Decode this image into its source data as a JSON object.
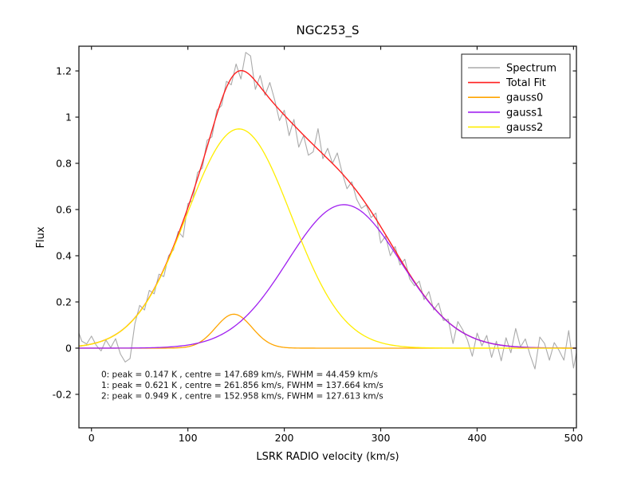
{
  "title": "NGC253_S",
  "xlabel": "LSRK RADIO velocity (km/s)",
  "ylabel": "Flux",
  "legend": {
    "position": "upper right",
    "entries": [
      {
        "label": "Spectrum",
        "color": "#aaaaaa"
      },
      {
        "label": "Total Fit",
        "color": "#ff1f1f"
      },
      {
        "label": "gauss0",
        "color": "#ffa500"
      },
      {
        "label": "gauss1",
        "color": "#a020f0"
      },
      {
        "label": "gauss2",
        "color": "#ffee00"
      }
    ]
  },
  "annotation": {
    "lines": [
      "0: peak = 0.147 K , centre = 147.689 km/s, FWHM = 44.459 km/s",
      "1: peak = 0.621 K , centre = 261.856 km/s, FWHM = 137.664 km/s",
      "2: peak = 0.949 K , centre = 152.958 km/s, FWHM = 127.613 km/s"
    ]
  },
  "chart_data": {
    "type": "line",
    "title": "NGC253_S",
    "xlabel": "LSRK RADIO velocity (km/s)",
    "ylabel": "Flux",
    "xlim": [
      -13,
      503
    ],
    "ylim": [
      -0.345,
      1.307
    ],
    "xticks": [
      0,
      100,
      200,
      300,
      400,
      500
    ],
    "yticks": [
      -0.2,
      0,
      0.2,
      0.4,
      0.6,
      0.8,
      1,
      1.2
    ],
    "grid": false,
    "legend_position": "upper right",
    "axis_color": "#1a1a1a",
    "gaussians": [
      {
        "name": "gauss0",
        "peak": 0.147,
        "centre": 147.689,
        "fwhm": 44.459,
        "color": "#ffa500"
      },
      {
        "name": "gauss1",
        "peak": 0.621,
        "centre": 261.856,
        "fwhm": 137.664,
        "color": "#a020f0"
      },
      {
        "name": "gauss2",
        "peak": 0.949,
        "centre": 152.958,
        "fwhm": 127.613,
        "color": "#ffee00"
      }
    ],
    "total_fit": {
      "name": "Total Fit",
      "color": "#ff1f1f",
      "definition": "sum of gaussian components"
    },
    "spectrum": {
      "name": "Spectrum",
      "color": "#aaaaaa",
      "x": [
        -13,
        -10,
        -5,
        0,
        5,
        10,
        15,
        20,
        25,
        30,
        35,
        40,
        45,
        50,
        55,
        60,
        65,
        70,
        75,
        80,
        85,
        90,
        95,
        100,
        105,
        110,
        115,
        120,
        125,
        130,
        135,
        140,
        145,
        150,
        155,
        160,
        165,
        170,
        175,
        180,
        185,
        190,
        195,
        200,
        205,
        210,
        215,
        220,
        225,
        230,
        235,
        240,
        245,
        250,
        255,
        260,
        265,
        270,
        275,
        280,
        285,
        290,
        295,
        300,
        305,
        310,
        315,
        320,
        325,
        330,
        335,
        340,
        345,
        350,
        355,
        360,
        365,
        370,
        375,
        380,
        385,
        390,
        395,
        400,
        405,
        410,
        415,
        420,
        425,
        430,
        435,
        440,
        445,
        450,
        455,
        460,
        465,
        470,
        475,
        480,
        485,
        490,
        495,
        500,
        503
      ],
      "flux": [
        0.065,
        0.03,
        0.018,
        0.052,
        0.012,
        -0.012,
        0.035,
        0.002,
        0.041,
        -0.025,
        -0.06,
        -0.045,
        0.105,
        0.185,
        0.165,
        0.25,
        0.235,
        0.32,
        0.31,
        0.4,
        0.425,
        0.505,
        0.48,
        0.625,
        0.64,
        0.76,
        0.78,
        0.9,
        0.915,
        1.03,
        1.05,
        1.155,
        1.14,
        1.23,
        1.165,
        1.28,
        1.265,
        1.12,
        1.18,
        1.095,
        1.15,
        1.075,
        0.985,
        1.03,
        0.92,
        0.99,
        0.87,
        0.92,
        0.835,
        0.85,
        0.95,
        0.82,
        0.865,
        0.8,
        0.845,
        0.76,
        0.69,
        0.72,
        0.645,
        0.605,
        0.62,
        0.565,
        0.585,
        0.455,
        0.485,
        0.4,
        0.44,
        0.36,
        0.385,
        0.3,
        0.27,
        0.29,
        0.21,
        0.245,
        0.165,
        0.195,
        0.12,
        0.125,
        0.02,
        0.115,
        0.08,
        0.035,
        -0.035,
        0.065,
        0.01,
        0.055,
        -0.04,
        0.03,
        -0.055,
        0.045,
        -0.02,
        0.085,
        0.005,
        0.04,
        -0.03,
        -0.09,
        0.048,
        0.02,
        -0.052,
        0.024,
        -0.01,
        -0.052,
        0.076,
        -0.086,
        -0.02
      ]
    }
  }
}
